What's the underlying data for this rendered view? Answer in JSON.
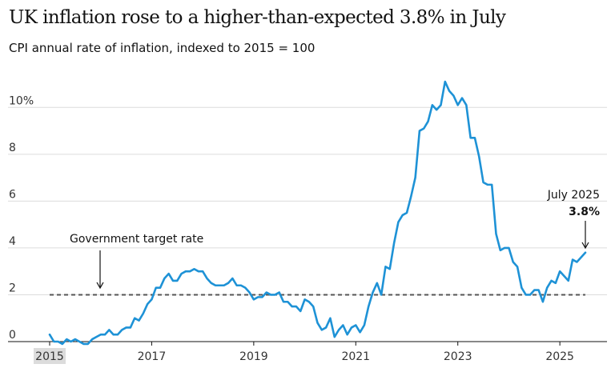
{
  "title": "UK inflation rose to a higher-than-expected 3.8% in July",
  "subtitle": "CPI annual rate of inflation, indexed to 2015 = 100",
  "chart_data": {
    "type": "line",
    "title": "UK inflation rose to a higher-than-expected 3.8% in July",
    "subtitle": "CPI annual rate of inflation, indexed to 2015 = 100",
    "xlabel": "",
    "ylabel": "",
    "ylim": [
      0,
      11
    ],
    "xlim": [
      "2015-01",
      "2025-07"
    ],
    "y_ticks": [
      {
        "value": 0,
        "label": "0"
      },
      {
        "value": 2,
        "label": "2"
      },
      {
        "value": 4,
        "label": "4"
      },
      {
        "value": 6,
        "label": "6"
      },
      {
        "value": 8,
        "label": "8"
      },
      {
        "value": 10,
        "label": "10%"
      }
    ],
    "x_ticks": [
      {
        "value": "2015-01",
        "label": "2015"
      },
      {
        "value": "2017-01",
        "label": "2017"
      },
      {
        "value": "2019-01",
        "label": "2019"
      },
      {
        "value": "2021-01",
        "label": "2021"
      },
      {
        "value": "2023-01",
        "label": "2023"
      },
      {
        "value": "2025-01",
        "label": "2025"
      }
    ],
    "grid": "horizontal",
    "line_color": "#1e92d6",
    "target_line": {
      "value": 2,
      "label": "Government target rate",
      "color": "#555555"
    },
    "end_annotation": {
      "label": "July 2025",
      "value_label": "3.8%"
    },
    "series": [
      {
        "values": [
          0.3,
          0.0,
          0.0,
          -0.1,
          0.1,
          0.0,
          0.1,
          0.0,
          -0.1,
          -0.1,
          0.1,
          0.2,
          0.3,
          0.3,
          0.5,
          0.3,
          0.3,
          0.5,
          0.6,
          0.6,
          1.0,
          0.9,
          1.2,
          1.6,
          1.8,
          2.3,
          2.3,
          2.7,
          2.9,
          2.6,
          2.6,
          2.9,
          3.0,
          3.0,
          3.1,
          3.0,
          3.0,
          2.7,
          2.5,
          2.4,
          2.4,
          2.4,
          2.5,
          2.7,
          2.4,
          2.4,
          2.3,
          2.1,
          1.8,
          1.9,
          1.9,
          2.1,
          2.0,
          2.0,
          2.1,
          1.7,
          1.7,
          1.5,
          1.5,
          1.3,
          1.8,
          1.7,
          1.5,
          0.8,
          0.5,
          0.6,
          1.0,
          0.2,
          0.5,
          0.7,
          0.3,
          0.6,
          0.7,
          0.4,
          0.7,
          1.5,
          2.1,
          2.5,
          2.0,
          3.2,
          3.1,
          4.2,
          5.1,
          5.4,
          5.5,
          6.2,
          7.0,
          9.0,
          9.1,
          9.4,
          10.1,
          9.9,
          10.1,
          11.1,
          10.7,
          10.5,
          10.1,
          10.4,
          10.1,
          8.7,
          8.7,
          7.9,
          6.8,
          6.7,
          6.7,
          4.6,
          3.9,
          4.0,
          4.0,
          3.4,
          3.2,
          2.3,
          2.0,
          2.0,
          2.2,
          2.2,
          1.7,
          2.3,
          2.6,
          2.5,
          3.0,
          2.8,
          2.6,
          3.5,
          3.4,
          3.6,
          3.8
        ]
      }
    ]
  }
}
